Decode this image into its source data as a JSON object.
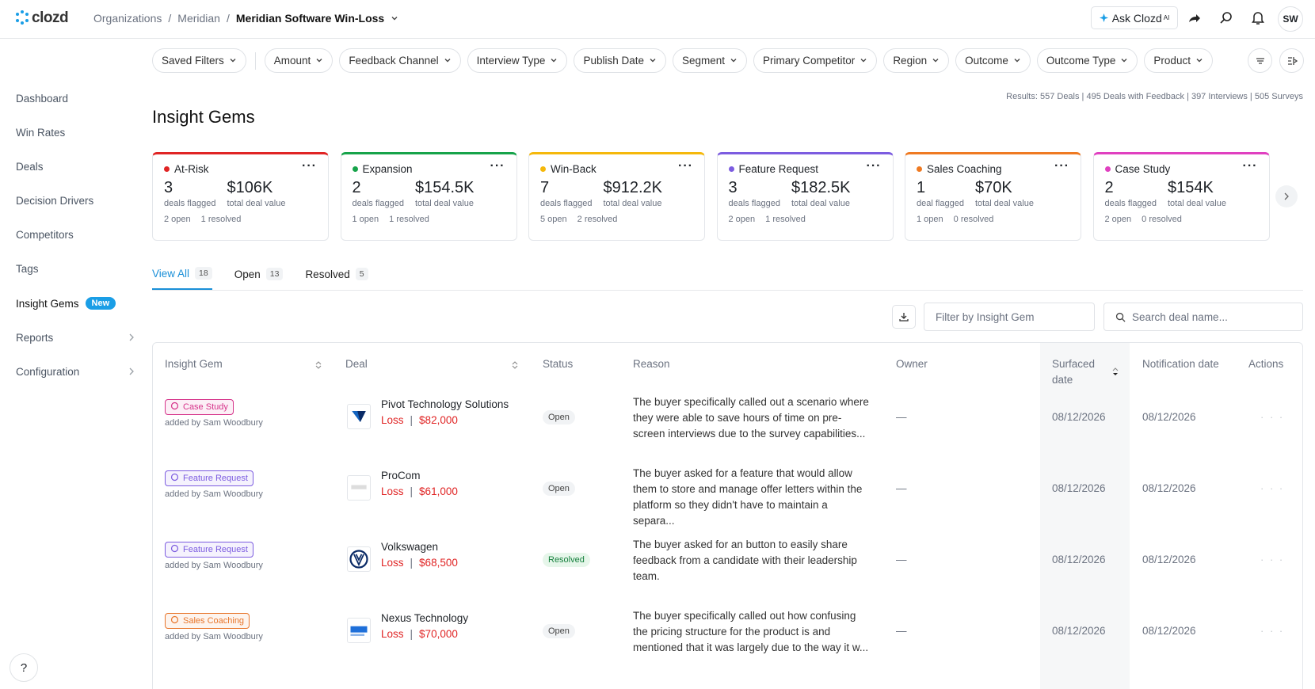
{
  "header": {
    "logo": "clozd",
    "breadcrumbs": [
      "Organizations",
      "Meridian",
      "Meridian Software Win-Loss"
    ],
    "ask": "Ask Clozd",
    "ask_sup": "AI",
    "avatar": "SW"
  },
  "sidebar": {
    "items": [
      {
        "label": "Dashboard"
      },
      {
        "label": "Win Rates"
      },
      {
        "label": "Deals"
      },
      {
        "label": "Decision Drivers"
      },
      {
        "label": "Competitors"
      },
      {
        "label": "Tags"
      },
      {
        "label": "Insight Gems",
        "badge": "New"
      },
      {
        "label": "Reports",
        "arrow": true
      },
      {
        "label": "Configuration",
        "arrow": true
      }
    ],
    "help": "?"
  },
  "filters": [
    "Saved Filters",
    "Amount",
    "Feedback Channel",
    "Interview Type",
    "Publish Date",
    "Segment",
    "Primary Competitor",
    "Region",
    "Outcome",
    "Outcome Type",
    "Product"
  ],
  "results": "Results: 557 Deals | 495 Deals with Feedback | 397 Interviews | 505 Surveys",
  "title": "Insight Gems",
  "cards": [
    {
      "name": "At-Risk",
      "color": "#e02424",
      "count": "3",
      "count_label": "deals flagged",
      "value": "$106K",
      "value_label": "total deal value",
      "open": "2 open",
      "resolved": "1 resolved"
    },
    {
      "name": "Expansion",
      "color": "#16a34a",
      "count": "2",
      "count_label": "deals flagged",
      "value": "$154.5K",
      "value_label": "total deal value",
      "open": "1 open",
      "resolved": "1 resolved"
    },
    {
      "name": "Win-Back",
      "color": "#f5b80b",
      "count": "7",
      "count_label": "deals flagged",
      "value": "$912.2K",
      "value_label": "total deal value",
      "open": "5 open",
      "resolved": "2 resolved"
    },
    {
      "name": "Feature Request",
      "color": "#7c5ce0",
      "count": "3",
      "count_label": "deals flagged",
      "value": "$182.5K",
      "value_label": "total deal value",
      "open": "2 open",
      "resolved": "1 resolved"
    },
    {
      "name": "Sales Coaching",
      "color": "#ef7a22",
      "count": "1",
      "count_label": "deal flagged",
      "value": "$70K",
      "value_label": "total deal value",
      "open": "1 open",
      "resolved": "0 resolved"
    },
    {
      "name": "Case Study",
      "color": "#e040c0",
      "count": "2",
      "count_label": "deals flagged",
      "value": "$154K",
      "value_label": "total deal value",
      "open": "2 open",
      "resolved": "0 resolved"
    }
  ],
  "tabs": [
    {
      "label": "View All",
      "count": "18",
      "active": true
    },
    {
      "label": "Open",
      "count": "13"
    },
    {
      "label": "Resolved",
      "count": "5"
    }
  ],
  "toolbar": {
    "filter": "Filter by Insight Gem",
    "search": "Search deal name..."
  },
  "table": {
    "columns": [
      "Insight Gem",
      "Deal",
      "Status",
      "Reason",
      "Owner",
      "Surfaced date",
      "Notification date",
      "Actions"
    ],
    "rows": [
      {
        "tag": "Case Study",
        "tag_color": "#d6338a",
        "added": "added by Sam Woodbury",
        "company": "Pivot Technology Solutions",
        "outcome": "Loss",
        "amount": "$82,000",
        "status": "Open",
        "reason": "The buyer specifically called out a scenario where they were able to save hours of time on pre-screen interviews due to the survey capabilities...",
        "owner": "—",
        "surfaced": "08/12/2026",
        "notified": "08/12/2026",
        "actions": "· · ·"
      },
      {
        "tag": "Feature Request",
        "tag_color": "#7c5ce0",
        "added": "added by Sam Woodbury",
        "company": "ProCom",
        "outcome": "Loss",
        "amount": "$61,000",
        "status": "Open",
        "reason": "The buyer asked for a feature that would allow them to store and manage offer letters within the platform so they didn't have to maintain a separa...",
        "owner": "—",
        "surfaced": "08/12/2026",
        "notified": "08/12/2026",
        "actions": "· · ·"
      },
      {
        "tag": "Feature Request",
        "tag_color": "#7c5ce0",
        "added": "added by Sam Woodbury",
        "company": "Volkswagen",
        "outcome": "Loss",
        "amount": "$68,500",
        "status": "Resolved",
        "reason": "The buyer asked for an button to easily share feedback from a candidate with their leadership team.",
        "owner": "—",
        "surfaced": "08/12/2026",
        "notified": "08/12/2026",
        "actions": "· · ·"
      },
      {
        "tag": "Sales Coaching",
        "tag_color": "#e8762c",
        "added": "added by Sam Woodbury",
        "company": "Nexus Technology",
        "outcome": "Loss",
        "amount": "$70,000",
        "status": "Open",
        "reason": "The buyer specifically called out how confusing the pricing structure for the product is and mentioned that it was largely due to the way it w...",
        "owner": "—",
        "surfaced": "08/12/2026",
        "notified": "08/12/2026",
        "actions": "· · ·"
      }
    ]
  }
}
